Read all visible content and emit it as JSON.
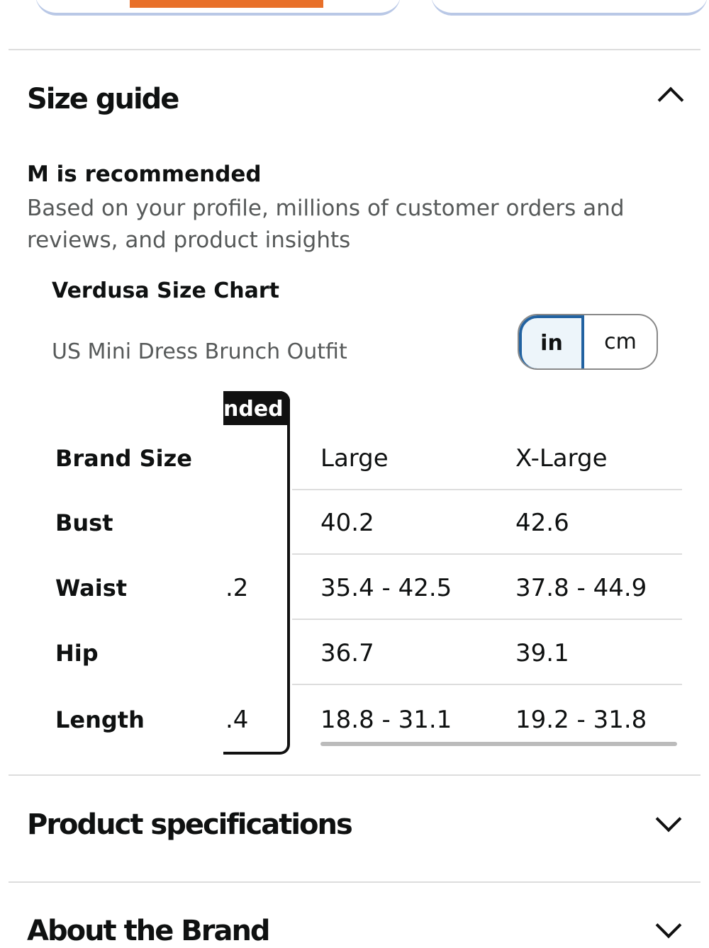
{
  "size_guide": {
    "title": "Size guide",
    "recommendation": "M is recommended",
    "description": "Based on your profile, millions of customer orders and reviews, and product insights",
    "chart_title": "Verdusa Size Chart",
    "chart_subtitle": "US Mini Dress Brunch Outfit",
    "units": [
      "in",
      "cm"
    ],
    "recommended_tab": "nded",
    "table": {
      "header": [
        "Brand Size",
        "Large",
        "X-Large"
      ],
      "rows": [
        {
          "label": "Bust",
          "values": [
            "40.2",
            "42.6"
          ]
        },
        {
          "label": "Waist",
          "recommended": ".2",
          "values": [
            "35.4 - 42.5",
            "37.8 - 44.9"
          ]
        },
        {
          "label": "Hip",
          "values": [
            "36.7",
            "39.1"
          ]
        },
        {
          "label": "Length",
          "recommended": ".4",
          "values": [
            "18.8 - 31.1",
            "19.2 - 31.8"
          ]
        }
      ]
    }
  },
  "sections": [
    "Product specifications",
    "About the Brand"
  ]
}
